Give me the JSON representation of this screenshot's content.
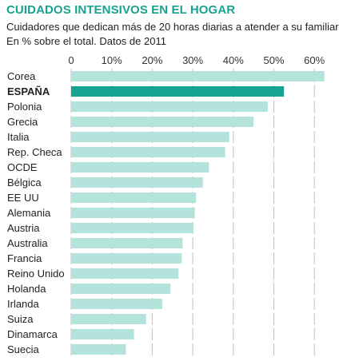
{
  "chart_data": {
    "type": "bar",
    "orientation": "horizontal",
    "title": "CUIDADOS INTENSIVOS EN EL HOGAR",
    "subtitle": [
      "Cuidadores que dedican más de 20 horas diarias a atender a su familiar",
      "En % sobre el total. Datos de 2011"
    ],
    "xlim": [
      0,
      65
    ],
    "ticks": [
      0,
      10,
      20,
      30,
      40,
      50,
      60
    ],
    "tick_labels": [
      "0",
      "10%",
      "20%",
      "30%",
      "40%",
      "50%",
      "60%"
    ],
    "categories": [
      "Corea",
      "ESPAÑA",
      "Polonia",
      "Grecia",
      "Italia",
      "Rep. Checa",
      "OCDE",
      "Bélgica",
      "EE UU",
      "Alemania",
      "Austria",
      "Australia",
      "Francia",
      "Reino Unido",
      "Holanda",
      "Irlanda",
      "Suiza",
      "Dinamarca",
      "Suecia"
    ],
    "values": [
      62.5,
      52.5,
      48.5,
      45,
      39,
      38,
      34,
      32.5,
      30.8,
      30.5,
      30.2,
      27.5,
      27.3,
      26.5,
      24.5,
      22.5,
      18.5,
      15.5,
      13.5
    ],
    "highlight": "ESPAÑA",
    "colors": {
      "bar": "#b4e3dc",
      "highlight": "#16a391",
      "title": "#17a391",
      "grid": "#bfbfbf"
    },
    "grid": true
  }
}
